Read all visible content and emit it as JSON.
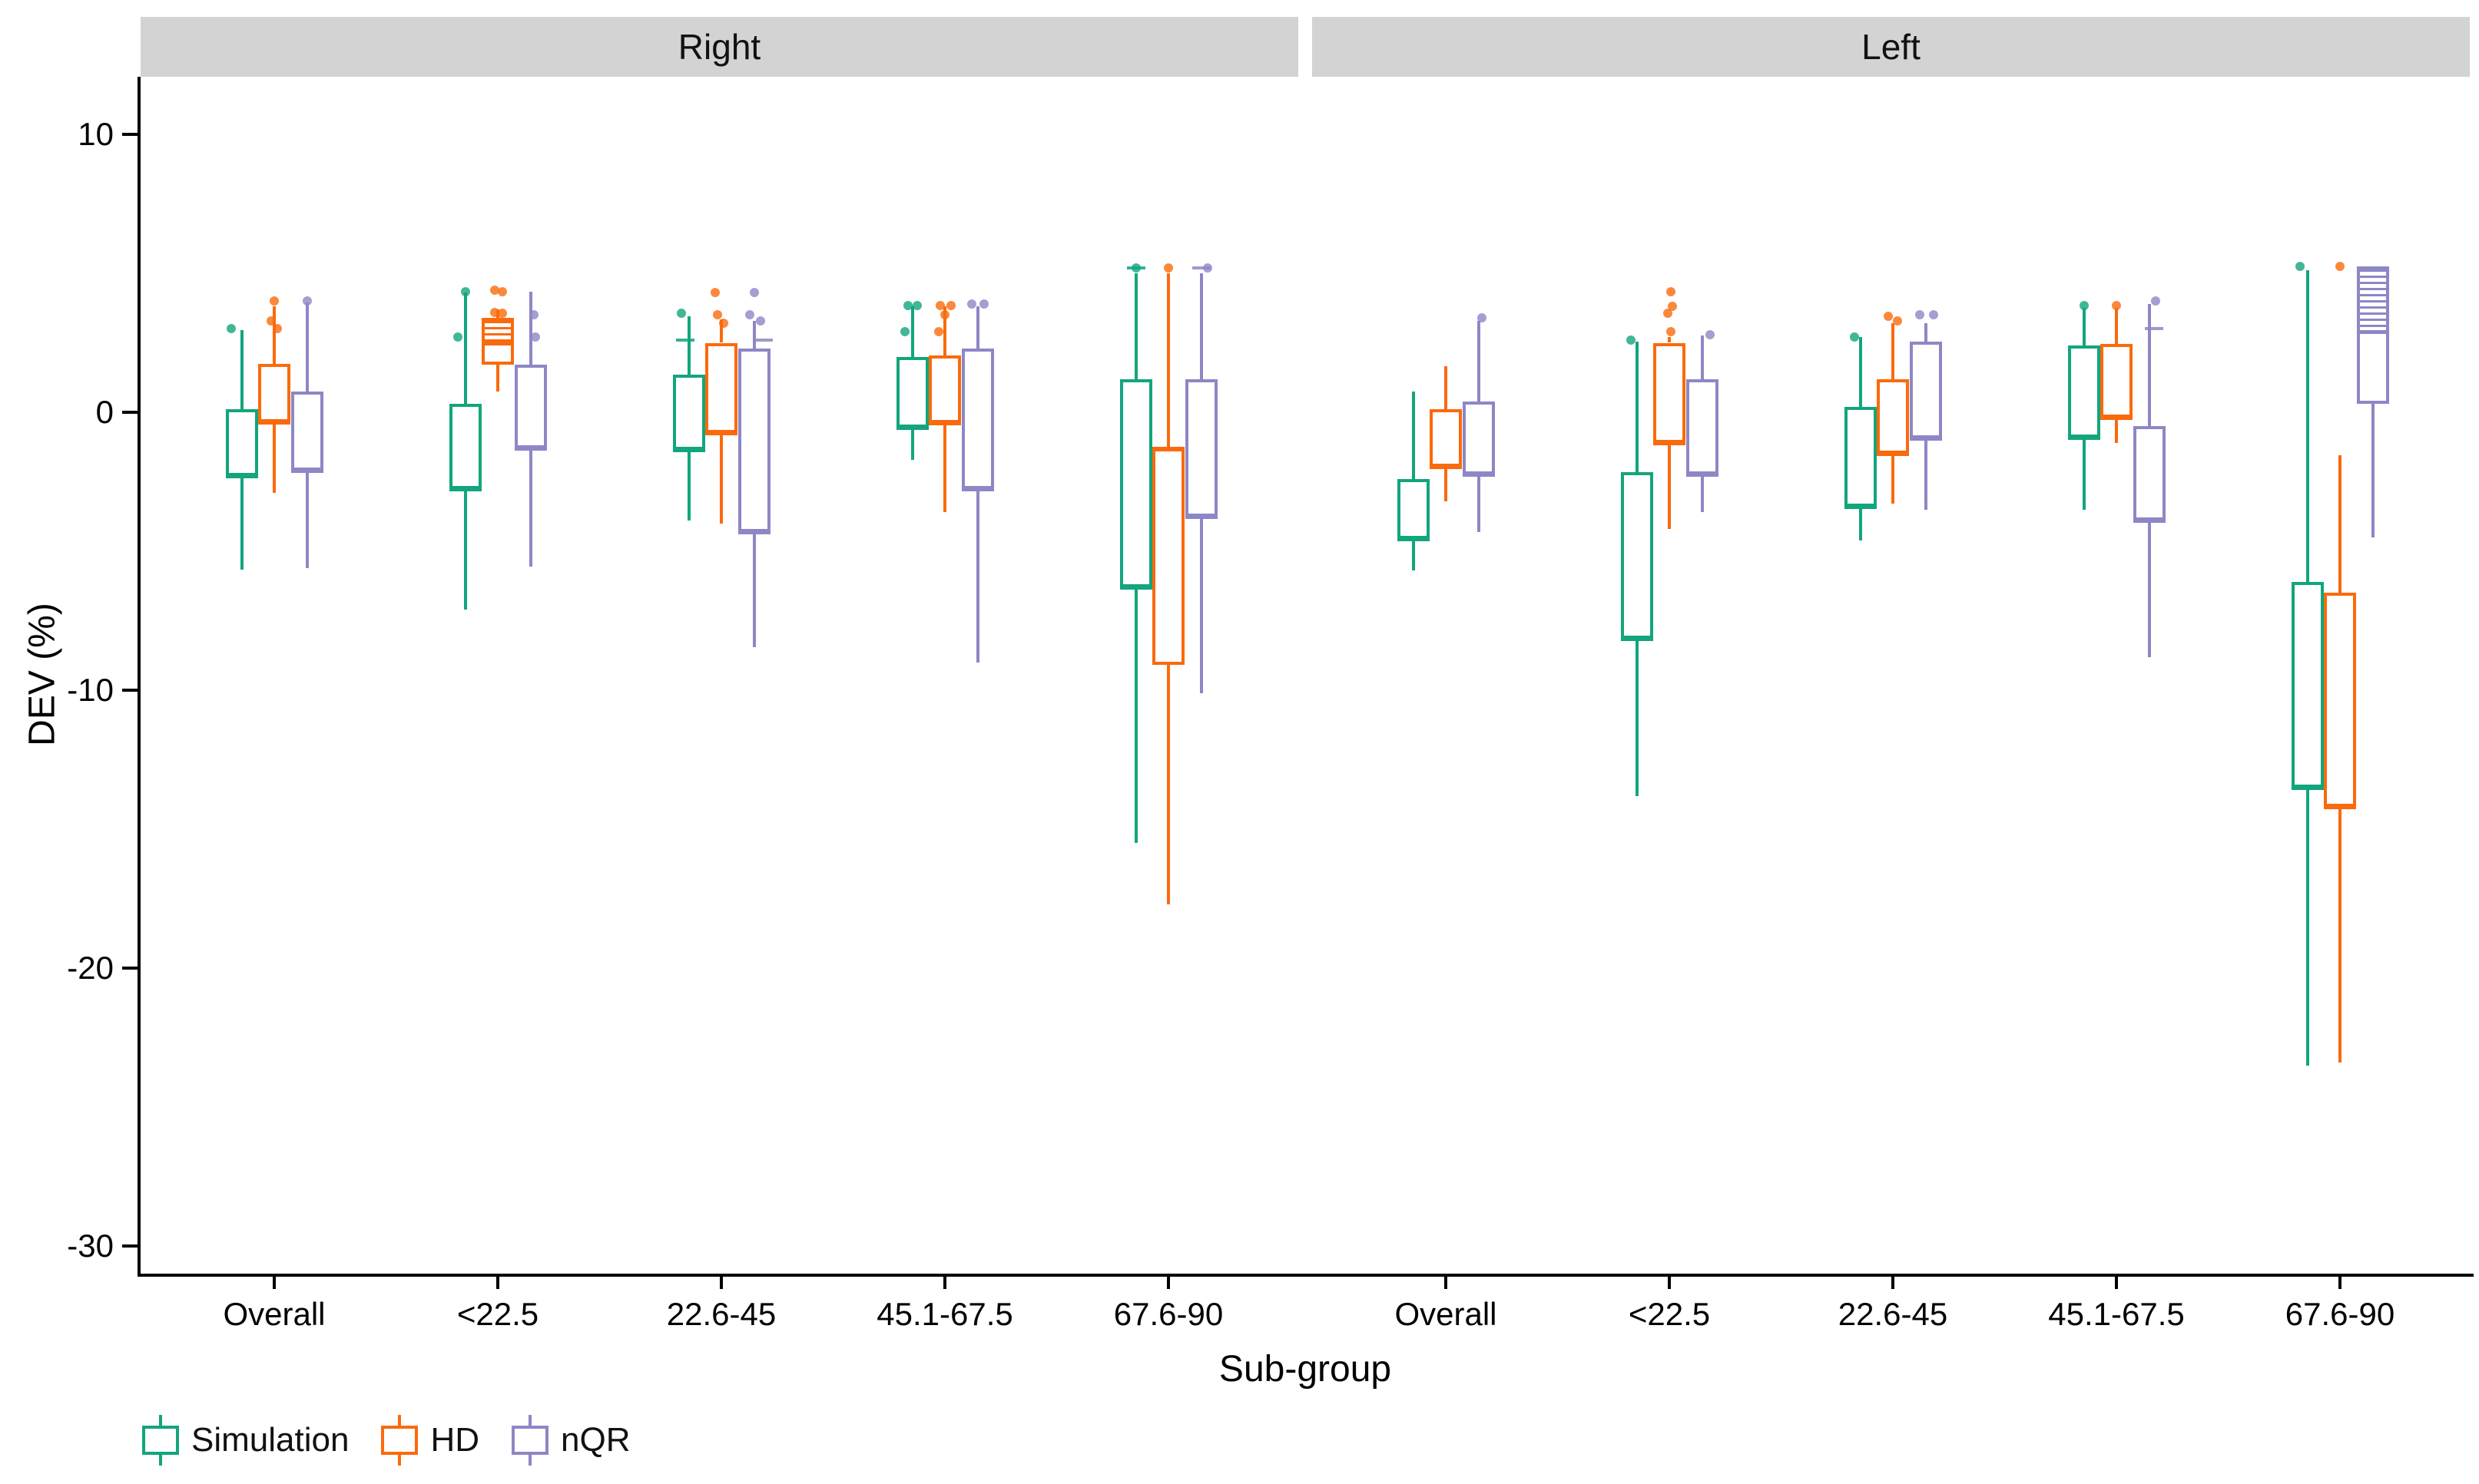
{
  "figure": {
    "ylabel": "DEV (%)",
    "xlabel": "Sub-group",
    "ytick_labels": [
      "10",
      "0",
      "-10",
      "-20",
      "-30"
    ],
    "ytick_values": [
      10,
      0,
      -10,
      -20,
      -30
    ],
    "group_labels": [
      "Overall",
      "<22.5",
      "22.6-45",
      "45.1-67.5",
      "67.6-90"
    ]
  },
  "series": [
    {
      "name": "Simulation",
      "color": "#12A57E"
    },
    {
      "name": "HD",
      "color": "#FA6A0D"
    },
    {
      "name": "nQR",
      "color": "#8D87C6"
    }
  ],
  "chart_data": {
    "type": "box",
    "title": "",
    "xlabel": "Sub-group",
    "ylabel": "DEV (%)",
    "ylim": [
      -31,
      12
    ],
    "grid": false,
    "legend_position": "bottom-left",
    "facets": [
      {
        "label": "Right",
        "groups": [
          {
            "label": "Overall",
            "boxes": [
              {
                "series": "Simulation",
                "low": -5.65,
                "q1": -2.3,
                "median": -2.3,
                "q3": 0.1,
                "high": 2.95,
                "outliers": [
                  [
                    3.0,
                    -14
                  ]
                ]
              },
              {
                "series": "HD",
                "low": -2.9,
                "q1": -0.35,
                "median": -0.35,
                "q3": 1.75,
                "high": 3.8,
                "outliers": [
                  [
                    4.0,
                    0
                  ],
                  [
                    3.3,
                    -4
                  ],
                  [
                    3.0,
                    4
                  ]
                ]
              },
              {
                "series": "nQR",
                "low": -5.6,
                "q1": -2.1,
                "median": -2.1,
                "q3": 0.75,
                "high": 3.95,
                "outliers": [
                  [
                    4.0,
                    0
                  ]
                ]
              }
            ]
          },
          {
            "label": "<22.5",
            "boxes": [
              {
                "series": "Simulation",
                "low": -7.1,
                "q1": -2.75,
                "median": -2.75,
                "q3": 0.3,
                "high": 4.3,
                "outliers": [
                  [
                    4.35,
                    0
                  ],
                  [
                    2.7,
                    -10
                  ]
                ]
              },
              {
                "series": "HD",
                "low": 0.75,
                "q1": 1.7,
                "median": 2.5,
                "q3": 3.4,
                "high": 3.7,
                "hatch": [
                  3.4,
                  2.5
                ],
                "outliers": [
                  [
                    4.4,
                    -4
                  ],
                  [
                    4.35,
                    6
                  ],
                  [
                    3.6,
                    -4
                  ],
                  [
                    3.55,
                    6
                  ]
                ]
              },
              {
                "series": "nQR",
                "low": -5.55,
                "q1": -1.3,
                "median": -1.3,
                "q3": 1.7,
                "high": 4.35,
                "outliers": [
                  [
                    3.5,
                    4
                  ],
                  [
                    2.7,
                    6
                  ]
                ]
              }
            ]
          },
          {
            "label": "22.6-45",
            "boxes": [
              {
                "series": "Simulation",
                "low": -3.9,
                "q1": -1.35,
                "median": -1.35,
                "q3": 1.35,
                "high": 3.45,
                "outliers": [
                  [
                    3.55,
                    -10
                  ],
                  [
                    2.6,
                    -5,
                    "l"
                  ]
                ]
              },
              {
                "series": "HD",
                "low": -4.0,
                "q1": -0.75,
                "median": -0.75,
                "q3": 2.5,
                "high": 3.35,
                "outliers": [
                  [
                    4.3,
                    -8
                  ],
                  [
                    3.5,
                    -5
                  ],
                  [
                    3.2,
                    3
                  ]
                ]
              },
              {
                "series": "nQR",
                "low": -8.45,
                "q1": -4.3,
                "median": -4.3,
                "q3": 2.3,
                "high": 3.3,
                "outliers": [
                  [
                    4.3,
                    0
                  ],
                  [
                    3.5,
                    -6
                  ],
                  [
                    3.3,
                    8
                  ],
                  [
                    2.6,
                    12,
                    "l"
                  ]
                ]
              }
            ]
          },
          {
            "label": "45.1-67.5",
            "boxes": [
              {
                "series": "Simulation",
                "low": -1.7,
                "q1": -0.55,
                "median": -0.55,
                "q3": 2.0,
                "high": 3.8,
                "outliers": [
                  [
                    3.85,
                    -6
                  ],
                  [
                    3.85,
                    6
                  ],
                  [
                    2.9,
                    -10
                  ]
                ]
              },
              {
                "series": "HD",
                "low": -3.6,
                "q1": -0.4,
                "median": -0.4,
                "q3": 2.05,
                "high": 3.8,
                "outliers": [
                  [
                    3.85,
                    -6
                  ],
                  [
                    3.85,
                    8
                  ],
                  [
                    3.5,
                    0
                  ],
                  [
                    2.9,
                    -8
                  ]
                ]
              },
              {
                "series": "nQR",
                "low": -9.0,
                "q1": -2.75,
                "median": -2.75,
                "q3": 2.3,
                "high": 3.8,
                "outliers": [
                  [
                    3.9,
                    -8
                  ],
                  [
                    3.9,
                    8
                  ]
                ]
              }
            ]
          },
          {
            "label": "67.6-90",
            "boxes": [
              {
                "series": "Simulation",
                "low": -15.5,
                "q1": -6.3,
                "median": -6.3,
                "q3": 1.2,
                "high": 5.0,
                "outliers": [
                  [
                    5.2,
                    0,
                    "l"
                  ],
                  [
                    5.2,
                    0
                  ]
                ]
              },
              {
                "series": "HD",
                "low": -17.7,
                "q1": -9.1,
                "median": -1.3,
                "q3": -1.3,
                "high": 5.0,
                "outliers": [
                  [
                    5.2,
                    0
                  ]
                ]
              },
              {
                "series": "nQR",
                "low": -10.1,
                "q1": -3.75,
                "median": -3.75,
                "q3": 1.2,
                "high": 5.0,
                "outliers": [
                  [
                    5.2,
                    0,
                    "l"
                  ],
                  [
                    5.2,
                    8
                  ]
                ]
              }
            ]
          }
        ]
      },
      {
        "label": "Left",
        "groups": [
          {
            "label": "Overall",
            "boxes": [
              {
                "series": "Simulation",
                "low": -5.7,
                "q1": -4.55,
                "median": -4.55,
                "q3": -2.4,
                "high": 0.75,
                "outliers": []
              },
              {
                "series": "HD",
                "low": -3.2,
                "q1": -1.95,
                "median": -1.95,
                "q3": 0.1,
                "high": 1.65,
                "outliers": []
              },
              {
                "series": "nQR",
                "low": -4.3,
                "q1": -2.25,
                "median": -2.25,
                "q3": 0.4,
                "high": 3.3,
                "outliers": [
                  [
                    3.4,
                    4
                  ]
                ]
              }
            ]
          },
          {
            "label": "<22.5",
            "boxes": [
              {
                "series": "Simulation",
                "low": -13.8,
                "q1": -8.15,
                "median": -8.15,
                "q3": -2.15,
                "high": 2.55,
                "outliers": [
                  [
                    2.6,
                    -8
                  ]
                ]
              },
              {
                "series": "HD",
                "low": -4.2,
                "q1": -1.1,
                "median": -1.1,
                "q3": 2.5,
                "high": 2.7,
                "outliers": [
                  [
                    4.35,
                    2
                  ],
                  [
                    3.8,
                    4
                  ],
                  [
                    3.55,
                    -2
                  ],
                  [
                    2.9,
                    2
                  ]
                ]
              },
              {
                "series": "nQR",
                "low": -3.6,
                "q1": -2.25,
                "median": -2.25,
                "q3": 1.2,
                "high": 2.75,
                "outliers": [
                  [
                    2.8,
                    10
                  ]
                ]
              }
            ]
          },
          {
            "label": "22.6-45",
            "boxes": [
              {
                "series": "Simulation",
                "low": -4.6,
                "q1": -3.4,
                "median": -3.4,
                "q3": 0.2,
                "high": 2.7,
                "outliers": [
                  [
                    2.7,
                    -8
                  ]
                ]
              },
              {
                "series": "HD",
                "low": -3.3,
                "q1": -1.5,
                "median": -1.5,
                "q3": 1.2,
                "high": 3.2,
                "outliers": [
                  [
                    3.45,
                    -6
                  ],
                  [
                    3.3,
                    6
                  ]
                ]
              },
              {
                "series": "nQR",
                "low": -3.5,
                "q1": -0.95,
                "median": -0.95,
                "q3": 2.55,
                "high": 3.2,
                "outliers": [
                  [
                    3.5,
                    -8
                  ],
                  [
                    3.5,
                    10
                  ]
                ]
              }
            ]
          },
          {
            "label": "45.1-67.5",
            "boxes": [
              {
                "series": "Simulation",
                "low": -3.5,
                "q1": -0.9,
                "median": -0.9,
                "q3": 2.4,
                "high": 3.75,
                "outliers": [
                  [
                    3.85,
                    0
                  ]
                ]
              },
              {
                "series": "HD",
                "low": -1.1,
                "q1": -0.2,
                "median": -0.2,
                "q3": 2.45,
                "high": 3.75,
                "outliers": [
                  [
                    3.85,
                    0
                  ]
                ]
              },
              {
                "series": "nQR",
                "low": -8.8,
                "q1": -3.9,
                "median": -3.9,
                "q3": -0.5,
                "high": 3.9,
                "outliers": [
                  [
                    4.0,
                    8
                  ],
                  [
                    3.0,
                    6,
                    "l"
                  ]
                ]
              }
            ]
          },
          {
            "label": "67.6-90",
            "boxes": [
              {
                "series": "Simulation",
                "low": -23.5,
                "q1": -13.5,
                "median": -13.5,
                "q3": -6.1,
                "high": 5.1,
                "outliers": [
                  [
                    5.25,
                    -10
                  ]
                ]
              },
              {
                "series": "HD",
                "low": -23.4,
                "q1": -14.2,
                "median": -14.2,
                "q3": -6.5,
                "high": -1.55,
                "outliers": [
                  [
                    5.25,
                    0
                  ]
                ]
              },
              {
                "series": "nQR",
                "low": -4.5,
                "q1": 0.3,
                "median": 2.9,
                "q3": 5.25,
                "high": 5.25,
                "hatch": [
                  5.25,
                  2.9
                ],
                "outliers": []
              }
            ]
          }
        ]
      }
    ]
  }
}
